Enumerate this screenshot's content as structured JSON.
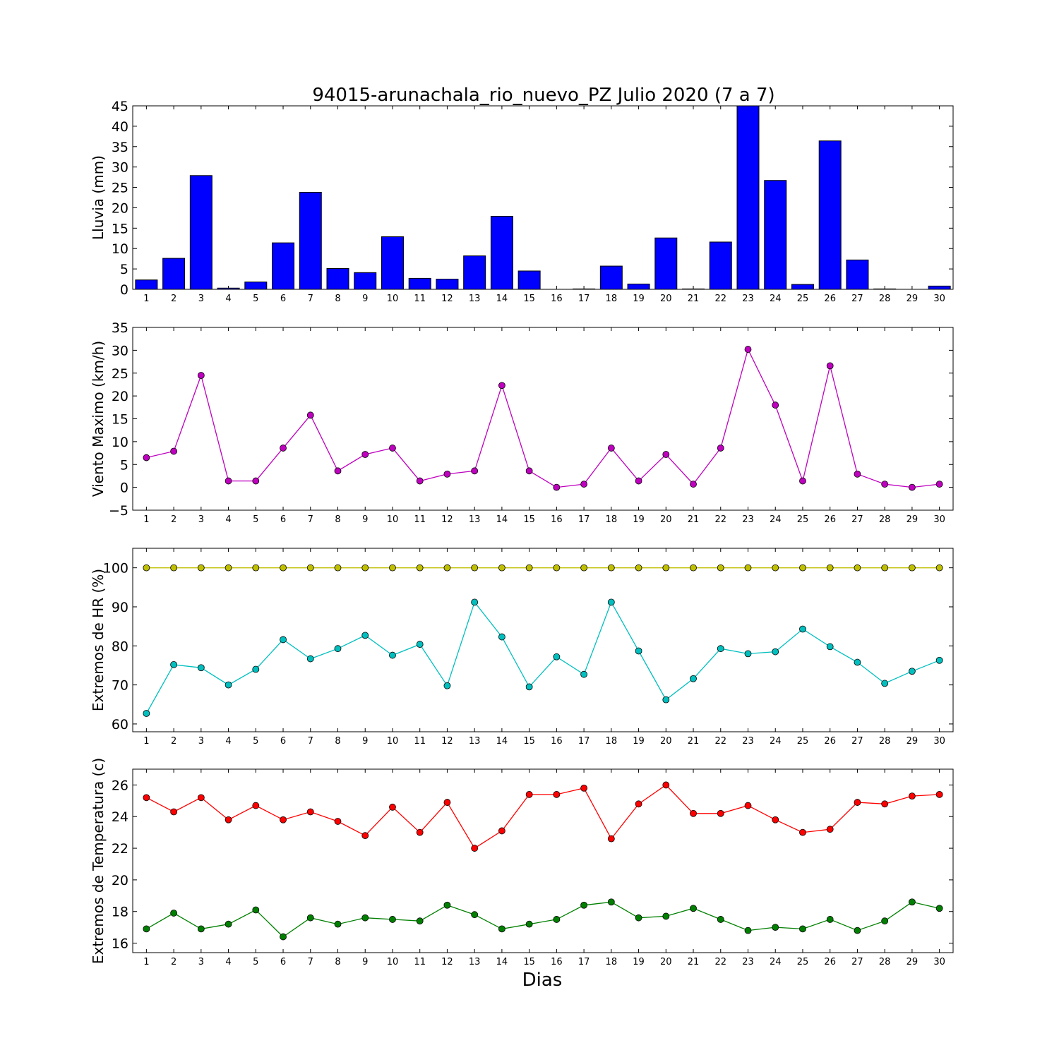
{
  "title": "94015-arunachala_rio_nuevo_PZ Julio 2020  (7 a 7)",
  "xlabel": "Dias",
  "chart_data": [
    {
      "type": "bar",
      "ylabel": "Lluvia (mm)",
      "ylim": [
        0,
        45
      ],
      "yticks": [
        0,
        5,
        10,
        15,
        20,
        25,
        30,
        35,
        40,
        45
      ],
      "categories": [
        1,
        2,
        3,
        4,
        5,
        6,
        7,
        8,
        9,
        10,
        11,
        12,
        13,
        14,
        15,
        16,
        17,
        18,
        19,
        20,
        21,
        22,
        23,
        24,
        25,
        26,
        27,
        28,
        29,
        30
      ],
      "series": [
        {
          "color": "#0000ff",
          "values": [
            2.3,
            7.6,
            27.9,
            0.3,
            1.8,
            11.4,
            23.8,
            5.1,
            4.1,
            12.9,
            2.7,
            2.5,
            8.2,
            17.9,
            4.5,
            0.0,
            0.1,
            5.7,
            1.3,
            12.6,
            0.1,
            11.6,
            45.0,
            26.7,
            1.2,
            36.4,
            7.2,
            0.1,
            0.0,
            0.8
          ]
        }
      ]
    },
    {
      "type": "line",
      "ylabel": "Viento Maximo (km/h)",
      "ylim": [
        -5,
        35
      ],
      "yticks": [
        -5,
        0,
        5,
        10,
        15,
        20,
        25,
        30,
        35
      ],
      "categories": [
        1,
        2,
        3,
        4,
        5,
        6,
        7,
        8,
        9,
        10,
        11,
        12,
        13,
        14,
        15,
        16,
        17,
        18,
        19,
        20,
        21,
        22,
        23,
        24,
        25,
        26,
        27,
        28,
        29,
        30
      ],
      "series": [
        {
          "color": "#bf00bf",
          "values": [
            6.5,
            7.9,
            24.5,
            1.4,
            1.4,
            8.6,
            15.8,
            3.6,
            7.2,
            8.6,
            1.4,
            2.9,
            3.6,
            22.3,
            3.6,
            0.0,
            0.7,
            8.6,
            1.4,
            7.2,
            0.7,
            8.6,
            30.2,
            18.0,
            1.4,
            26.6,
            2.9,
            0.7,
            0.0,
            0.7
          ]
        }
      ]
    },
    {
      "type": "line",
      "ylabel": "Extremos de HR (%)",
      "ylim": [
        58,
        105
      ],
      "yticks": [
        60,
        70,
        80,
        90,
        100
      ],
      "categories": [
        1,
        2,
        3,
        4,
        5,
        6,
        7,
        8,
        9,
        10,
        11,
        12,
        13,
        14,
        15,
        16,
        17,
        18,
        19,
        20,
        21,
        22,
        23,
        24,
        25,
        26,
        27,
        28,
        29,
        30
      ],
      "series": [
        {
          "color": "#bfbf00",
          "values": [
            100,
            100,
            100,
            100,
            100,
            100,
            100,
            100,
            100,
            100,
            100,
            100,
            100,
            100,
            100,
            100,
            100,
            100,
            100,
            100,
            100,
            100,
            100,
            100,
            100,
            100,
            100,
            100,
            100,
            100
          ]
        },
        {
          "color": "#00bfbf",
          "values": [
            62.7,
            75.2,
            74.4,
            70.0,
            74.0,
            81.6,
            76.7,
            79.3,
            82.7,
            77.6,
            80.4,
            69.8,
            91.2,
            82.3,
            69.5,
            77.2,
            72.7,
            91.2,
            78.7,
            66.2,
            71.6,
            79.3,
            78.0,
            78.5,
            84.3,
            79.8,
            75.8,
            70.4,
            73.5,
            76.3
          ]
        }
      ]
    },
    {
      "type": "line",
      "ylabel": "Extremos de Temperatura (c)",
      "ylim": [
        15.4,
        27
      ],
      "yticks": [
        16,
        18,
        20,
        22,
        24,
        26
      ],
      "categories": [
        1,
        2,
        3,
        4,
        5,
        6,
        7,
        8,
        9,
        10,
        11,
        12,
        13,
        14,
        15,
        16,
        17,
        18,
        19,
        20,
        21,
        22,
        23,
        24,
        25,
        26,
        27,
        28,
        29,
        30
      ],
      "series": [
        {
          "color": "#ff0000",
          "values": [
            25.2,
            24.3,
            25.2,
            23.8,
            24.7,
            23.8,
            24.3,
            23.7,
            22.8,
            24.6,
            23.0,
            24.9,
            22.0,
            23.1,
            25.4,
            25.4,
            25.8,
            22.6,
            24.8,
            26.0,
            24.2,
            24.2,
            24.7,
            23.8,
            23.0,
            23.2,
            24.9,
            24.8,
            25.3,
            25.4
          ]
        },
        {
          "color": "#008000",
          "values": [
            16.9,
            17.9,
            16.9,
            17.2,
            18.1,
            16.4,
            17.6,
            17.2,
            17.6,
            17.5,
            17.4,
            18.4,
            17.8,
            16.9,
            17.2,
            17.5,
            18.4,
            18.6,
            17.6,
            17.7,
            18.2,
            17.5,
            16.8,
            17.0,
            16.9,
            17.5,
            16.8,
            17.4,
            18.6,
            18.2
          ]
        }
      ]
    }
  ]
}
